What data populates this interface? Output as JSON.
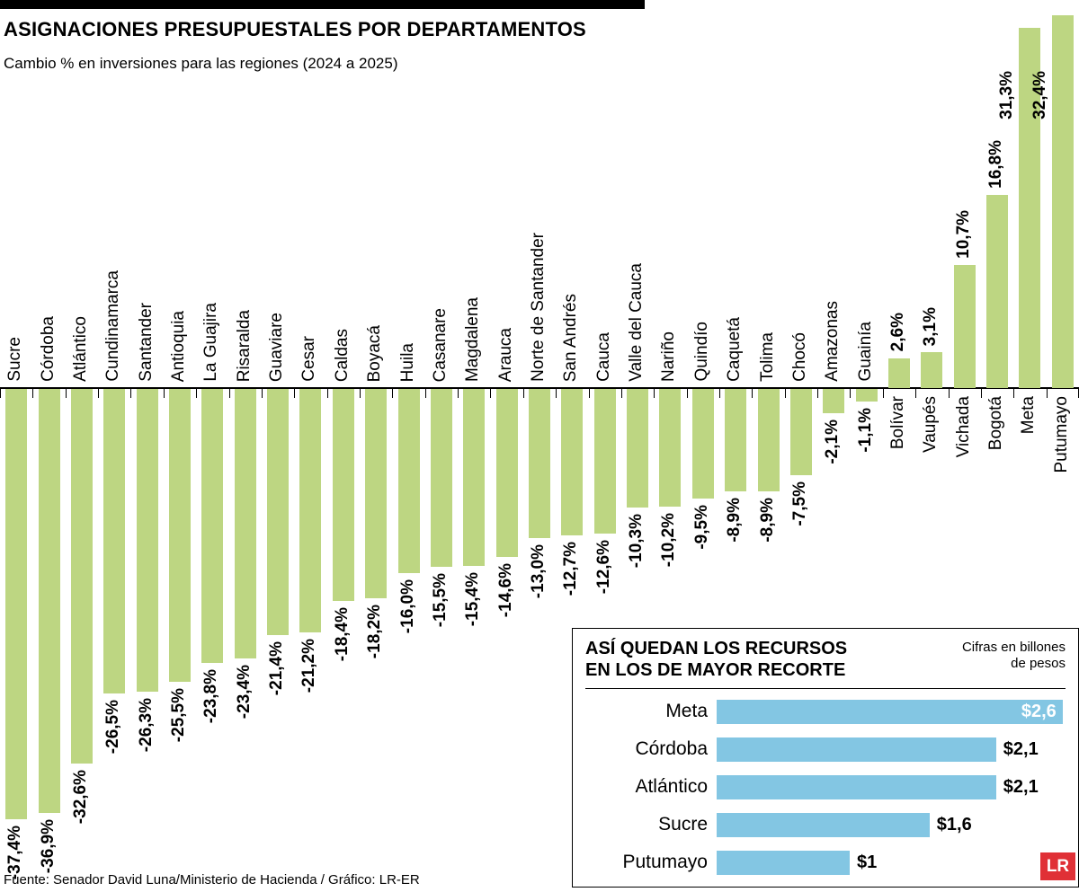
{
  "header": {
    "title": "ASIGNACIONES PRESUPUESTALES POR DEPARTAMENTOS",
    "subtitle": "Cambio % en inversiones para las regiones (2024 a 2025)"
  },
  "chart_data": {
    "type": "bar",
    "title": "ASIGNACIONES PRESUPUESTALES POR DEPARTAMENTOS",
    "subtitle": "Cambio % en inversiones para las regiones (2024 a 2025)",
    "unit": "%",
    "ylim": [
      -37.4,
      32.4
    ],
    "bar_color": "#bdd682",
    "categories": [
      "Sucre",
      "Córdoba",
      "Atlántico",
      "Cundinamarca",
      "Santander",
      "Antioquia",
      "La Guajira",
      "Risaralda",
      "Guaviare",
      "Cesar",
      "Caldas",
      "Boyacá",
      "Huila",
      "Casanare",
      "Magdalena",
      "Arauca",
      "Norte de Santander",
      "San Andrés",
      "Cauca",
      "Valle del Cauca",
      "Nariño",
      "Quindío",
      "Caquetá",
      "Tolima",
      "Chocó",
      "Amazonas",
      "Guainía",
      "Bolívar",
      "Vaupés",
      "Vichada",
      "Bogotá",
      "Meta",
      "Putumayo"
    ],
    "values": [
      -37.4,
      -36.9,
      -32.6,
      -26.5,
      -26.3,
      -25.5,
      -23.8,
      -23.4,
      -21.4,
      -21.2,
      -18.4,
      -18.2,
      -16.0,
      -15.5,
      -15.4,
      -14.6,
      -13.0,
      -12.7,
      -12.6,
      -10.3,
      -10.2,
      -9.5,
      -8.9,
      -8.9,
      -7.5,
      -2.1,
      -1.1,
      2.6,
      3.1,
      10.7,
      16.8,
      31.3,
      32.4
    ],
    "value_labels": [
      "-37,4%",
      "-36,9%",
      "-32,6%",
      "-26,5%",
      "-26,3%",
      "-25,5%",
      "-23,8%",
      "-23,4%",
      "-21,4%",
      "-21,2%",
      "-18,4%",
      "-18,2%",
      "-16,0%",
      "-15,5%",
      "-15,4%",
      "-14,6%",
      "-13,0%",
      "-12,7%",
      "-12,6%",
      "-10,3%",
      "-10,2%",
      "-9,5%",
      "-8,9%",
      "-8,9%",
      "-7,5%",
      "-2,1%",
      "-1,1%",
      "2,6%",
      "3,1%",
      "10,7%",
      "16,8%",
      "31,3%",
      "32,4%"
    ]
  },
  "inset": {
    "title_line1": "ASÍ QUEDAN LOS RECURSOS",
    "title_line2": "EN LOS DE MAYOR RECORTE",
    "note_line1": "Cifras en billones",
    "note_line2": "de pesos",
    "bar_color": "#83c6e3",
    "rows": [
      {
        "label": "Meta",
        "value": 2.6,
        "value_label": "$2,6",
        "value_inside": true
      },
      {
        "label": "Córdoba",
        "value": 2.1,
        "value_label": "$2,1",
        "value_inside": false
      },
      {
        "label": "Atlántico",
        "value": 2.1,
        "value_label": "$2,1",
        "value_inside": false
      },
      {
        "label": "Sucre",
        "value": 1.6,
        "value_label": "$1,6",
        "value_inside": false
      },
      {
        "label": "Putumayo",
        "value": 1,
        "value_label": "$1",
        "value_inside": false
      }
    ]
  },
  "footer": {
    "source": "Fuente: Senador David Luna/Ministerio de Hacienda / Gráfico: LR-ER",
    "logo": "LR",
    "logo_color": "#e03036"
  }
}
